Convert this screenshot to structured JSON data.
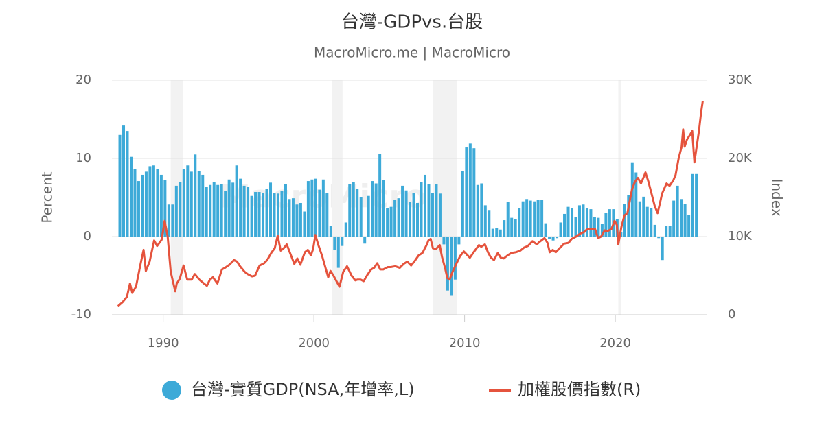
{
  "chart_data": {
    "type": "combo",
    "title": "台灣-GDPvs.台股",
    "subtitle": "MacroMicro.me | MacroMicro",
    "watermark": "MacroMicro",
    "y_label": "Percent",
    "y2_label": "Index",
    "xlim": [
      1986.6,
      2026.1
    ],
    "xticks": [
      1990,
      2000,
      2010,
      2020
    ],
    "ylim": [
      -10,
      20
    ],
    "yticks": [
      -10,
      0,
      10,
      20
    ],
    "y2lim": [
      0,
      30000
    ],
    "y2ticks": [
      0,
      {
        "value": 10000,
        "label": "10K"
      },
      {
        "value": 20000,
        "label": "20K"
      },
      {
        "value": 30000,
        "label": "30K"
      }
    ],
    "grid": true,
    "legend": "bottom",
    "bands": [
      [
        1990.5,
        1991.3
      ],
      [
        2001.2,
        2001.9
      ],
      [
        2007.9,
        2009.5
      ],
      [
        2020.2,
        2020.4
      ]
    ],
    "band_color": "#f2f2f2",
    "series": [
      {
        "name": "台灣-實質GDP(NSA,年增率,L)",
        "type": "bar",
        "color": "#3daad8",
        "x": [
          1987.125,
          1987.375,
          1987.625,
          1987.875,
          1988.125,
          1988.375,
          1988.625,
          1988.875,
          1989.125,
          1989.375,
          1989.625,
          1989.875,
          1990.125,
          1990.375,
          1990.625,
          1990.875,
          1991.125,
          1991.375,
          1991.625,
          1991.875,
          1992.125,
          1992.375,
          1992.625,
          1992.875,
          1993.125,
          1993.375,
          1993.625,
          1993.875,
          1994.125,
          1994.375,
          1994.625,
          1994.875,
          1995.125,
          1995.375,
          1995.625,
          1995.875,
          1996.125,
          1996.375,
          1996.625,
          1996.875,
          1997.125,
          1997.375,
          1997.625,
          1997.875,
          1998.125,
          1998.375,
          1998.625,
          1998.875,
          1999.125,
          1999.375,
          1999.625,
          1999.875,
          2000.125,
          2000.375,
          2000.625,
          2000.875,
          2001.125,
          2001.375,
          2001.625,
          2001.875,
          2002.125,
          2002.375,
          2002.625,
          2002.875,
          2003.125,
          2003.375,
          2003.625,
          2003.875,
          2004.125,
          2004.375,
          2004.625,
          2004.875,
          2005.125,
          2005.375,
          2005.625,
          2005.875,
          2006.125,
          2006.375,
          2006.625,
          2006.875,
          2007.125,
          2007.375,
          2007.625,
          2007.875,
          2008.125,
          2008.375,
          2008.625,
          2008.875,
          2009.125,
          2009.375,
          2009.625,
          2009.875,
          2010.125,
          2010.375,
          2010.625,
          2010.875,
          2011.125,
          2011.375,
          2011.625,
          2011.875,
          2012.125,
          2012.375,
          2012.625,
          2012.875,
          2013.125,
          2013.375,
          2013.625,
          2013.875,
          2014.125,
          2014.375,
          2014.625,
          2014.875,
          2015.125,
          2015.375,
          2015.625,
          2015.875,
          2016.125,
          2016.375,
          2016.625,
          2016.875,
          2017.125,
          2017.375,
          2017.625,
          2017.875,
          2018.125,
          2018.375,
          2018.625,
          2018.875,
          2019.125,
          2019.375,
          2019.625,
          2019.875,
          2020.125,
          2020.375,
          2020.625,
          2020.875,
          2021.125,
          2021.375,
          2021.625,
          2021.875,
          2022.125,
          2022.375,
          2022.625,
          2022.875,
          2023.125,
          2023.375,
          2023.625,
          2023.875,
          2024.125,
          2024.375,
          2024.625,
          2024.875,
          2025.125,
          2025.375
        ],
        "values": [
          13.0,
          14.2,
          13.5,
          10.2,
          8.6,
          7.1,
          7.9,
          8.3,
          9.0,
          9.1,
          8.6,
          7.9,
          7.2,
          4.1,
          4.1,
          6.5,
          7.0,
          8.6,
          9.1,
          8.3,
          10.5,
          8.4,
          7.9,
          6.4,
          6.6,
          7.0,
          6.6,
          6.7,
          5.8,
          7.3,
          6.9,
          9.1,
          7.4,
          6.5,
          6.4,
          5.2,
          5.7,
          5.7,
          5.6,
          6.1,
          6.9,
          5.6,
          5.5,
          5.8,
          6.7,
          4.8,
          4.9,
          4.1,
          4.3,
          3.2,
          7.1,
          7.3,
          7.4,
          6.0,
          7.3,
          5.6,
          1.4,
          -1.7,
          -4.0,
          -1.2,
          1.8,
          6.7,
          7.0,
          6.1,
          5.0,
          -0.9,
          5.2,
          7.1,
          6.8,
          10.6,
          7.2,
          3.6,
          3.8,
          4.7,
          4.9,
          6.5,
          5.9,
          4.4,
          5.6,
          4.3,
          7.0,
          7.9,
          6.7,
          5.6,
          6.7,
          5.5,
          -1.0,
          -6.9,
          -7.5,
          -5.5,
          -1.0,
          8.4,
          11.4,
          11.9,
          11.3,
          6.6,
          6.8,
          4.0,
          3.4,
          1.0,
          1.1,
          0.9,
          2.1,
          4.4,
          2.4,
          2.2,
          3.6,
          4.5,
          4.8,
          4.6,
          4.5,
          4.7,
          4.7,
          1.7,
          -0.3,
          -0.5,
          -0.2,
          1.8,
          2.9,
          3.8,
          3.6,
          2.5,
          4.0,
          4.1,
          3.6,
          3.5,
          2.5,
          2.4,
          1.6,
          3.0,
          3.5,
          3.5,
          2.2,
          0.6,
          4.2,
          5.3,
          9.5,
          8.2,
          4.5,
          5.1,
          3.8,
          3.6,
          1.5,
          -0.2,
          -3.0,
          1.4,
          1.4,
          4.6,
          6.5,
          4.8,
          4.2,
          2.8,
          8.0,
          8.0
        ]
      },
      {
        "name": "加權股價指數(R)",
        "type": "line",
        "axis": "y2",
        "color": "#e5533d",
        "x": [
          1987.0,
          1987.3,
          1987.6,
          1987.8,
          1987.95,
          1988.2,
          1988.5,
          1988.7,
          1988.85,
          1989.1,
          1989.4,
          1989.6,
          1989.9,
          1990.1,
          1990.3,
          1990.5,
          1990.8,
          1990.9,
          1991.1,
          1991.35,
          1991.6,
          1991.9,
          1992.1,
          1992.4,
          1992.7,
          1992.9,
          1993.1,
          1993.3,
          1993.6,
          1993.9,
          1994.1,
          1994.4,
          1994.7,
          1994.9,
          1995.1,
          1995.4,
          1995.6,
          1995.9,
          1996.1,
          1996.4,
          1996.7,
          1996.9,
          1997.2,
          1997.4,
          1997.6,
          1997.8,
          1998.0,
          1998.2,
          1998.5,
          1998.7,
          1998.9,
          1999.1,
          1999.4,
          1999.6,
          1999.8,
          1999.95,
          2000.1,
          2000.3,
          2000.55,
          2000.8,
          2000.95,
          2001.1,
          2001.3,
          2001.5,
          2001.7,
          2001.95,
          2002.2,
          2002.5,
          2002.75,
          2002.9,
          2003.1,
          2003.3,
          2003.55,
          2003.8,
          2004.0,
          2004.2,
          2004.4,
          2004.6,
          2004.9,
          2005.1,
          2005.4,
          2005.7,
          2005.95,
          2006.2,
          2006.45,
          2006.7,
          2006.95,
          2007.2,
          2007.5,
          2007.6,
          2007.75,
          2007.9,
          2008.1,
          2008.35,
          2008.5,
          2008.7,
          2008.85,
          2009.0,
          2009.2,
          2009.45,
          2009.7,
          2009.95,
          2010.1,
          2010.35,
          2010.6,
          2010.95,
          2011.1,
          2011.35,
          2011.55,
          2011.75,
          2011.95,
          2012.2,
          2012.4,
          2012.6,
          2012.85,
          2013.1,
          2013.4,
          2013.7,
          2013.95,
          2014.2,
          2014.5,
          2014.8,
          2014.95,
          2015.3,
          2015.5,
          2015.65,
          2015.85,
          2016.05,
          2016.3,
          2016.6,
          2016.9,
          2017.1,
          2017.4,
          2017.7,
          2017.95,
          2018.1,
          2018.4,
          2018.65,
          2018.85,
          2019.05,
          2019.3,
          2019.5,
          2019.75,
          2019.95,
          2020.1,
          2020.2,
          2020.4,
          2020.6,
          2020.8,
          2020.95,
          2021.1,
          2021.3,
          2021.5,
          2021.7,
          2021.9,
          2022.0,
          2022.2,
          2022.4,
          2022.6,
          2022.8,
          2022.95,
          2023.1,
          2023.4,
          2023.6,
          2023.85,
          2024.0,
          2024.2,
          2024.4,
          2024.5,
          2024.6,
          2024.75,
          2024.95,
          2025.1,
          2025.25,
          2025.4,
          2025.55,
          2025.7,
          2025.8
        ],
        "values": [
          1100,
          1600,
          2300,
          4000,
          2800,
          3600,
          6500,
          8300,
          5600,
          6800,
          9500,
          8800,
          9600,
          12000,
          10000,
          5500,
          3000,
          4000,
          4600,
          6300,
          4500,
          4500,
          5200,
          4500,
          4000,
          3700,
          4500,
          4800,
          4000,
          5800,
          6000,
          6400,
          7000,
          6800,
          6200,
          5500,
          5200,
          4900,
          5000,
          6300,
          6600,
          7000,
          8000,
          8500,
          10100,
          8200,
          8500,
          9000,
          7500,
          6500,
          7200,
          6400,
          8000,
          8300,
          7600,
          8400,
          10200,
          8900,
          7500,
          5800,
          4800,
          5600,
          5000,
          4300,
          3600,
          5500,
          6200,
          5000,
          4400,
          4500,
          4500,
          4300,
          5100,
          5800,
          6000,
          6600,
          5800,
          5800,
          6100,
          6100,
          6200,
          6000,
          6500,
          6800,
          6300,
          6900,
          7600,
          7900,
          9000,
          9500,
          9700,
          8500,
          8400,
          8900,
          7400,
          6000,
          4700,
          4500,
          5500,
          6500,
          7500,
          8100,
          7800,
          7300,
          8000,
          8900,
          8700,
          9000,
          8000,
          7300,
          7000,
          7900,
          7300,
          7200,
          7600,
          7900,
          8000,
          8200,
          8600,
          8800,
          9400,
          9000,
          9300,
          9800,
          9200,
          8000,
          8300,
          8000,
          8500,
          9100,
          9200,
          9700,
          10000,
          10400,
          10600,
          10900,
          11000,
          11000,
          9800,
          10000,
          10800,
          10700,
          11000,
          12000,
          11500,
          9000,
          11200,
          12700,
          13000,
          14500,
          16000,
          17000,
          17500,
          16800,
          17700,
          18200,
          17000,
          15500,
          14000,
          13000,
          14200,
          15500,
          16800,
          16500,
          17200,
          17900,
          20000,
          21500,
          23700,
          21500,
          22400,
          23000,
          23500,
          19500,
          21500,
          23500,
          26000,
          27300
        ]
      }
    ]
  }
}
